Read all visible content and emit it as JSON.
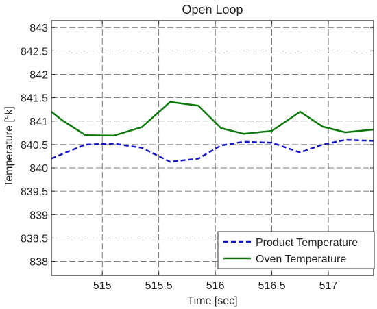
{
  "chart_data": {
    "type": "line",
    "title": "Open Loop",
    "xlabel": "Time [sec]",
    "ylabel": "Temperature [°k]",
    "xlim": [
      514.55,
      517.4
    ],
    "ylim": [
      837.7,
      843.15
    ],
    "xticks": [
      515,
      515.5,
      516,
      516.5,
      517
    ],
    "xtick_labels": [
      "515",
      "515.5",
      "516",
      "516.5",
      "517"
    ],
    "yticks": [
      838,
      838.5,
      839,
      839.5,
      840,
      840.5,
      841,
      841.5,
      842,
      842.5,
      843
    ],
    "ytick_labels": [
      "838",
      "838.5",
      "839",
      "839.5",
      "840",
      "840.5",
      "841",
      "841.5",
      "842",
      "842.5",
      "843"
    ],
    "grid": true,
    "legend_position": "bottom-right",
    "series": [
      {
        "name": "Product Temperature",
        "color": "#1414c8",
        "dash": "dashed",
        "x": [
          514.55,
          514.65,
          514.85,
          515.1,
          515.35,
          515.6,
          515.85,
          516.05,
          516.25,
          516.5,
          516.75,
          516.95,
          517.15,
          517.4
        ],
        "y": [
          840.2,
          840.3,
          840.5,
          840.52,
          840.43,
          840.13,
          840.2,
          840.48,
          840.56,
          840.54,
          840.33,
          840.5,
          840.6,
          840.58
        ]
      },
      {
        "name": "Oven Temperature",
        "color": "#0b7a0b",
        "dash": "solid",
        "x": [
          514.55,
          514.65,
          514.85,
          515.1,
          515.35,
          515.6,
          515.85,
          516.05,
          516.25,
          516.5,
          516.75,
          516.95,
          517.15,
          517.4
        ],
        "y": [
          841.2,
          841.01,
          840.7,
          840.69,
          840.87,
          841.41,
          841.33,
          840.85,
          840.73,
          840.79,
          841.2,
          840.88,
          840.76,
          840.82
        ]
      }
    ]
  }
}
